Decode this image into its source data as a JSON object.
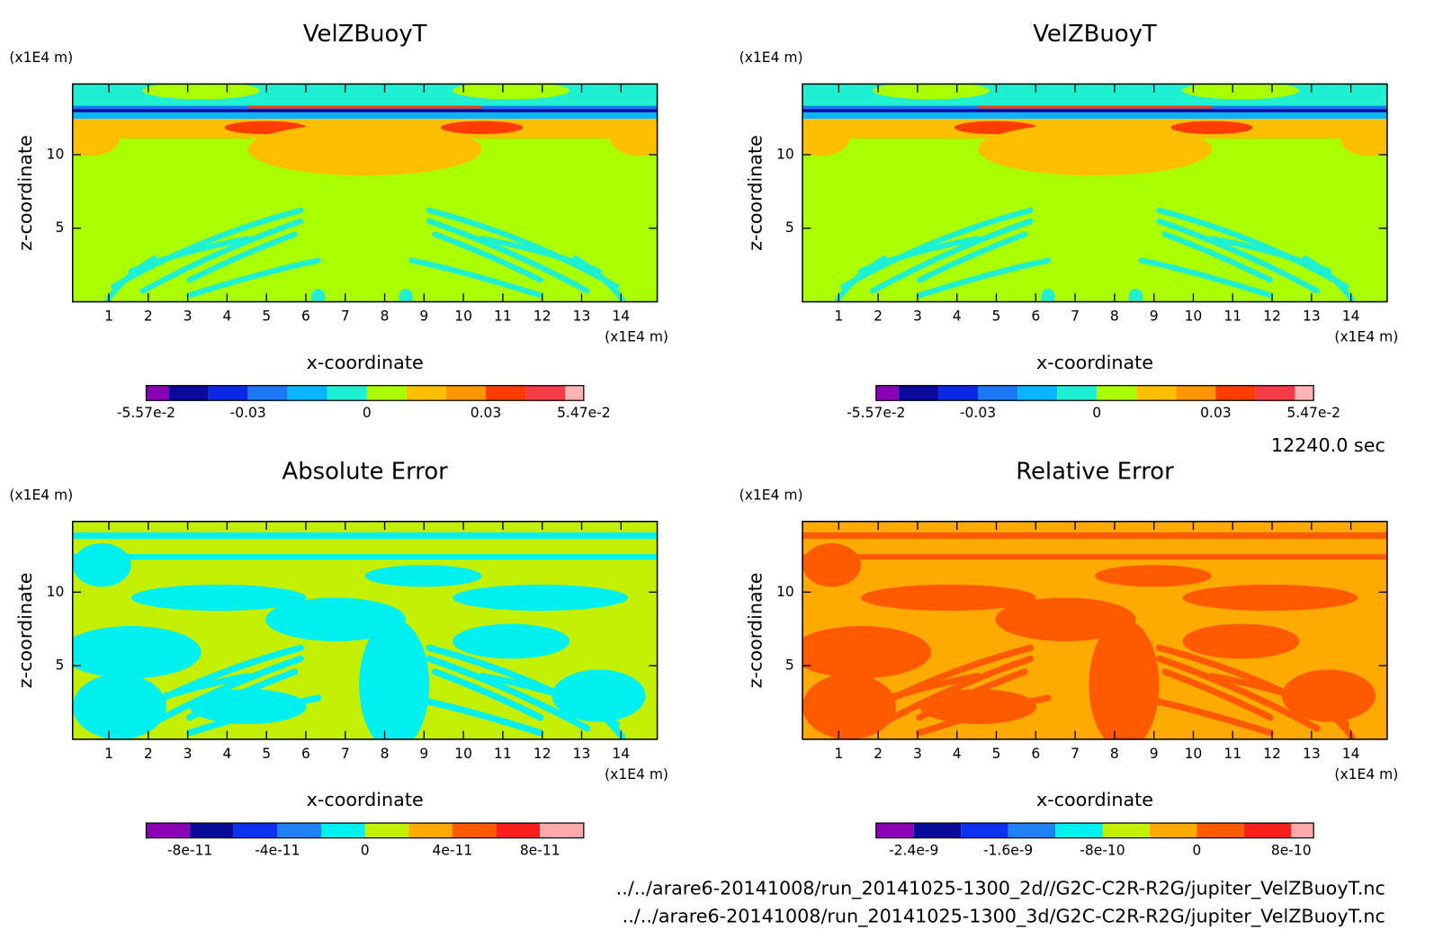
{
  "time_label": "12240.0 sec",
  "files": [
    "../../arare6-20141008/run_20141025-1300_2d//G2C-C2R-R2G/jupiter_VelZBuoyT.nc",
    "../../arare6-20141008/run_20141025-1300_3d/G2C-C2R-R2G/jupiter_VelZBuoyT.nc"
  ],
  "chart_data": [
    {
      "type": "contour",
      "title": "VelZBuoyT",
      "x_label": "x-coordinate",
      "y_label": "z-coordinate",
      "x_unit": "(x1E4 m)",
      "y_unit": "(x1E4 m)",
      "xlim": [
        0.08,
        14.92
      ],
      "ylim": [
        0,
        14.8
      ],
      "xticks": [
        1,
        2,
        3,
        4,
        5,
        6,
        7,
        8,
        9,
        10,
        11,
        12,
        13,
        14
      ],
      "yticks": [
        5,
        10
      ],
      "colorbar": {
        "levels": [
          -0.0557,
          -0.05,
          -0.04,
          -0.03,
          -0.02,
          -0.01,
          0,
          0.01,
          0.02,
          0.03,
          0.04,
          0.05,
          0.0547
        ],
        "colors": [
          "#8a00b4",
          "#0a0a9a",
          "#0a28e6",
          "#1e78f5",
          "#0ab4ff",
          "#1ef0d2",
          "#aaff00",
          "#ffbe00",
          "#ff9600",
          "#ff3c00",
          "#f53c46",
          "#ffb4b4"
        ],
        "ticks": [
          {
            "value": -0.0557,
            "label": "-5.57e-2"
          },
          -0.03,
          0,
          0.03,
          {
            "value": 0.0547,
            "label": "5.47e-2"
          }
        ]
      }
    },
    {
      "type": "contour",
      "title": "VelZBuoyT",
      "x_label": "x-coordinate",
      "y_label": "z-coordinate",
      "x_unit": "(x1E4 m)",
      "y_unit": "(x1E4 m)",
      "xlim": [
        0.08,
        14.92
      ],
      "ylim": [
        0,
        14.8
      ],
      "xticks": [
        1,
        2,
        3,
        4,
        5,
        6,
        7,
        8,
        9,
        10,
        11,
        12,
        13,
        14
      ],
      "yticks": [
        5,
        10
      ],
      "colorbar": {
        "levels": [
          -0.0557,
          -0.05,
          -0.04,
          -0.03,
          -0.02,
          -0.01,
          0,
          0.01,
          0.02,
          0.03,
          0.04,
          0.05,
          0.0547
        ],
        "colors": [
          "#8a00b4",
          "#0a0a9a",
          "#0a28e6",
          "#1e78f5",
          "#0ab4ff",
          "#1ef0d2",
          "#aaff00",
          "#ffbe00",
          "#ff9600",
          "#ff3c00",
          "#f53c46",
          "#ffb4b4"
        ],
        "ticks": [
          {
            "value": -0.0557,
            "label": "-5.57e-2"
          },
          -0.03,
          0,
          0.03,
          {
            "value": 0.0547,
            "label": "5.47e-2"
          }
        ]
      }
    },
    {
      "type": "contour",
      "title": "Absolute Error",
      "x_label": "x-coordinate",
      "y_label": "z-coordinate",
      "x_unit": "(x1E4 m)",
      "y_unit": "(x1E4 m)",
      "xlim": [
        0.08,
        14.92
      ],
      "ylim": [
        0,
        14.8
      ],
      "xticks": [
        1,
        2,
        3,
        4,
        5,
        6,
        7,
        8,
        9,
        10,
        11,
        12,
        13,
        14
      ],
      "yticks": [
        5,
        10
      ],
      "colorbar": {
        "levels": [
          -1e-10,
          -8e-11,
          -6e-11,
          -4e-11,
          -2e-11,
          0,
          2e-11,
          4e-11,
          6e-11,
          8e-11,
          1e-10
        ],
        "colors": [
          "#8a00b4",
          "#0a0a9a",
          "#0a32f0",
          "#1e82f5",
          "#00f0f0",
          "#c3f000",
          "#ffaa00",
          "#ff5a00",
          "#ff1e1e",
          "#ffaaaa"
        ],
        "ticks": [
          -8e-11,
          -4e-11,
          0,
          4e-11,
          8e-11
        ]
      }
    },
    {
      "type": "contour",
      "title": "Relative Error",
      "x_label": "x-coordinate",
      "y_label": "z-coordinate",
      "x_unit": "(x1E4 m)",
      "y_unit": "(x1E4 m)",
      "xlim": [
        0.08,
        14.92
      ],
      "ylim": [
        0,
        14.8
      ],
      "xticks": [
        1,
        2,
        3,
        4,
        5,
        6,
        7,
        8,
        9,
        10,
        11,
        12,
        13,
        14
      ],
      "yticks": [
        5,
        10
      ],
      "colorbar": {
        "levels": [
          -2.72e-09,
          -2.4e-09,
          -2e-09,
          -1.6e-09,
          -1.2e-09,
          -8e-10,
          -4e-10,
          0,
          4e-10,
          8e-10,
          9.9e-10
        ],
        "colors": [
          "#8a00b4",
          "#0a0a9a",
          "#0a32f0",
          "#1e82f5",
          "#00f0f0",
          "#c3f000",
          "#ffaa00",
          "#ff5a00",
          "#ff1e1e",
          "#ffaaaa"
        ],
        "ticks": [
          -2.4e-09,
          -1.6e-09,
          -8e-10,
          0,
          8e-10
        ]
      }
    }
  ]
}
